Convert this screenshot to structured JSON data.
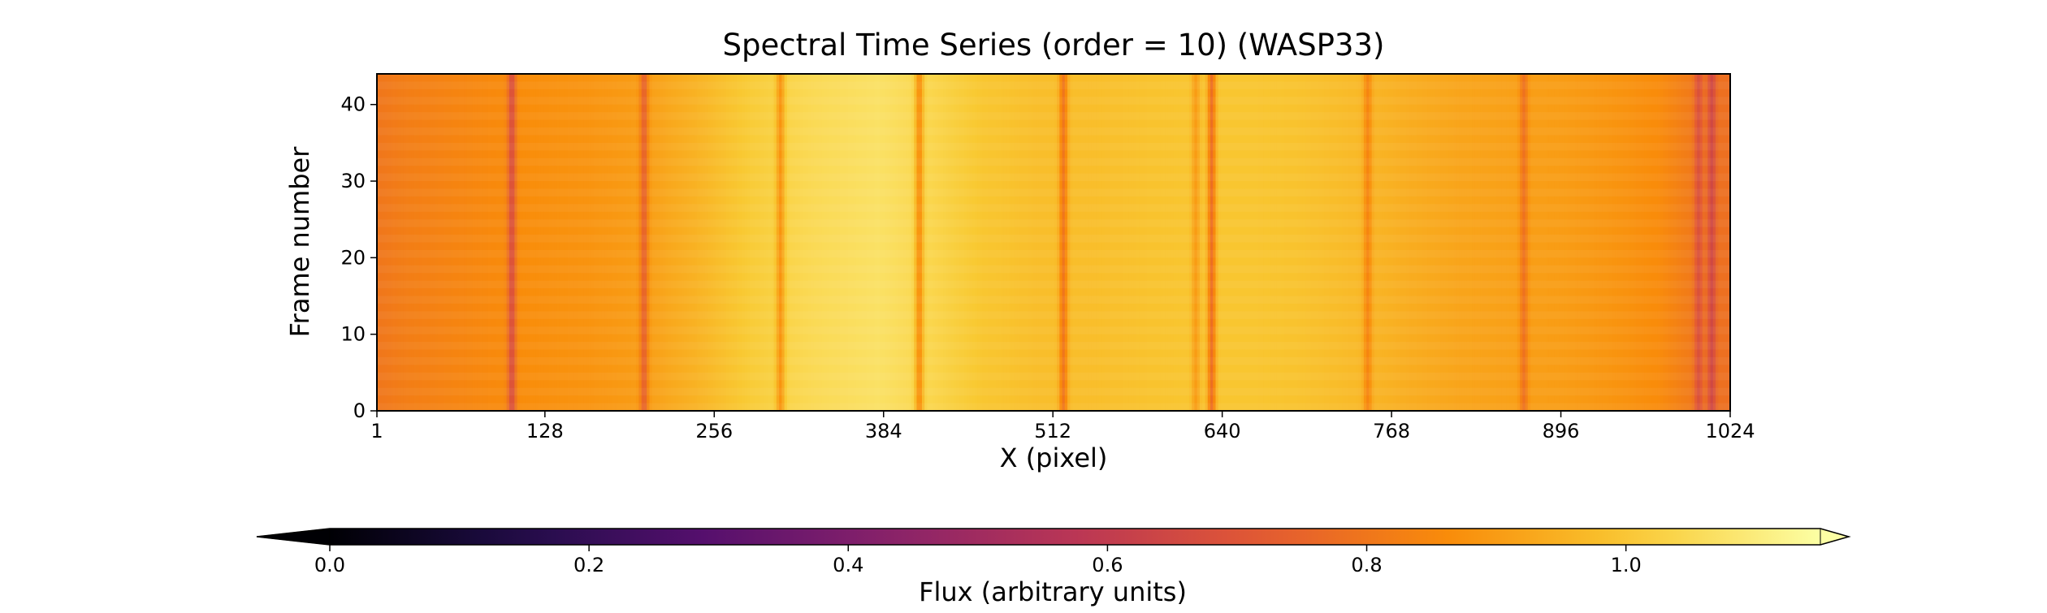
{
  "chart_data": {
    "type": "heatmap",
    "title": "Spectral Time Series (order = 10) (WASP33)",
    "xlabel": "X (pixel)",
    "ylabel": "Frame number",
    "xlim": [
      1,
      1024
    ],
    "ylim": [
      0,
      44
    ],
    "x_ticks": [
      1,
      128,
      256,
      384,
      512,
      640,
      768,
      896,
      1024
    ],
    "y_ticks": [
      0,
      10,
      20,
      30,
      40
    ],
    "frames": 44,
    "colormap": "inferno",
    "colorbar": {
      "label": "Flux (arbitrary units)",
      "range": [
        0.0,
        1.15
      ],
      "ticks": [
        0.0,
        0.2,
        0.4,
        0.6,
        0.8,
        1.0
      ],
      "extend": "both",
      "orientation": "horizontal"
    },
    "continuum_profile": {
      "x": [
        1,
        20,
        60,
        100,
        128,
        160,
        200,
        240,
        280,
        330,
        380,
        420,
        460,
        500,
        540,
        580,
        620,
        660,
        700,
        740,
        780,
        820,
        860,
        900,
        940,
        970,
        990,
        1010,
        1024
      ],
      "flux": [
        0.8,
        0.82,
        0.84,
        0.86,
        0.87,
        0.88,
        0.9,
        0.95,
        1.01,
        1.05,
        1.07,
        1.04,
        1.0,
        0.98,
        0.98,
        0.99,
        1.0,
        1.0,
        0.99,
        0.97,
        0.94,
        0.92,
        0.91,
        0.9,
        0.88,
        0.86,
        0.82,
        0.79,
        0.78
      ]
    },
    "absorption_lines": [
      {
        "x": 103,
        "depth": 0.18
      },
      {
        "x": 203,
        "depth": 0.16
      },
      {
        "x": 306,
        "depth": 0.15
      },
      {
        "x": 411,
        "depth": 0.18
      },
      {
        "x": 520,
        "depth": 0.18
      },
      {
        "x": 620,
        "depth": 0.1
      },
      {
        "x": 632,
        "depth": 0.22
      },
      {
        "x": 750,
        "depth": 0.12
      },
      {
        "x": 868,
        "depth": 0.12
      },
      {
        "x": 1000,
        "depth": 0.12
      },
      {
        "x": 1010,
        "depth": 0.14
      }
    ]
  }
}
